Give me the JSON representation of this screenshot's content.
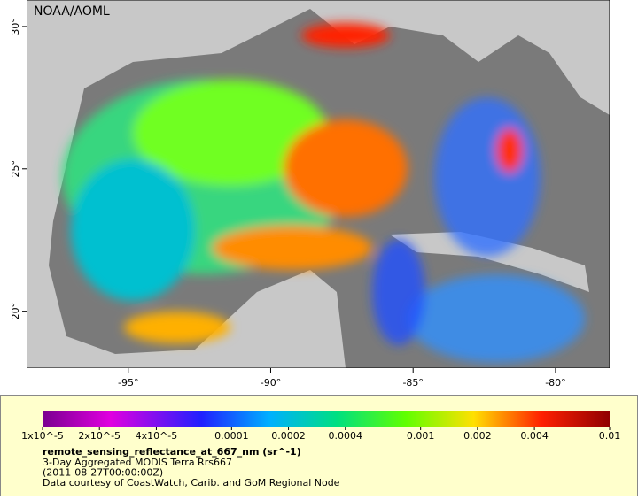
{
  "map": {
    "credit": "NOAA/AOML",
    "xlim": [
      -98.57,
      -78.1
    ],
    "ylim": [
      18.0,
      30.93
    ],
    "xticks": [
      {
        "value": -95,
        "label": "-95°"
      },
      {
        "value": -90,
        "label": "-90°"
      },
      {
        "value": -85,
        "label": "-85°"
      },
      {
        "value": -80,
        "label": "-80°"
      }
    ],
    "yticks": [
      {
        "value": 20,
        "label": "20°"
      },
      {
        "value": 25,
        "label": "25°"
      },
      {
        "value": 30,
        "label": "30°"
      }
    ]
  },
  "colorbar": {
    "scale": "log",
    "lim": [
      1e-05,
      0.01
    ],
    "ticks": [
      {
        "value": 1e-05,
        "label": "1x10^-5"
      },
      {
        "value": 2e-05,
        "label": "2x10^-5"
      },
      {
        "value": 4e-05,
        "label": "4x10^-5"
      },
      0.0001,
      0.0002,
      0.0004,
      0.001,
      0.002,
      0.004,
      0.01
    ]
  },
  "caption": {
    "variable": "remote_sensing_reflectance_at_667_nm (sr^-1)",
    "lines": [
      "3-Day Aggregated MODIS Terra Rrs667",
      "(2011-08-27T00:00:00Z)",
      "Data courtesy of CoastWatch, Carib. and GoM Regional Node"
    ]
  }
}
